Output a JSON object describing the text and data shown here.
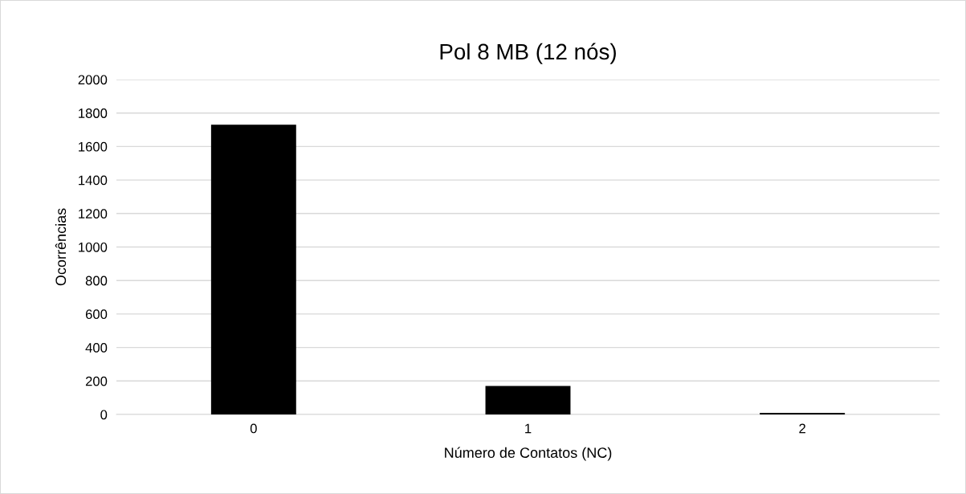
{
  "chart_data": {
    "type": "bar",
    "title": "Pol 8 MB (12 nós)",
    "xlabel": "Número de Contatos (NC)",
    "ylabel": "Ocorrências",
    "categories": [
      "0",
      "1",
      "2"
    ],
    "values": [
      1730,
      170,
      10
    ],
    "color": "#000000",
    "ylim": [
      0,
      2000
    ],
    "yticks": [
      0,
      200,
      400,
      600,
      800,
      1000,
      1200,
      1400,
      1600,
      1800,
      2000
    ],
    "grid": "y"
  }
}
